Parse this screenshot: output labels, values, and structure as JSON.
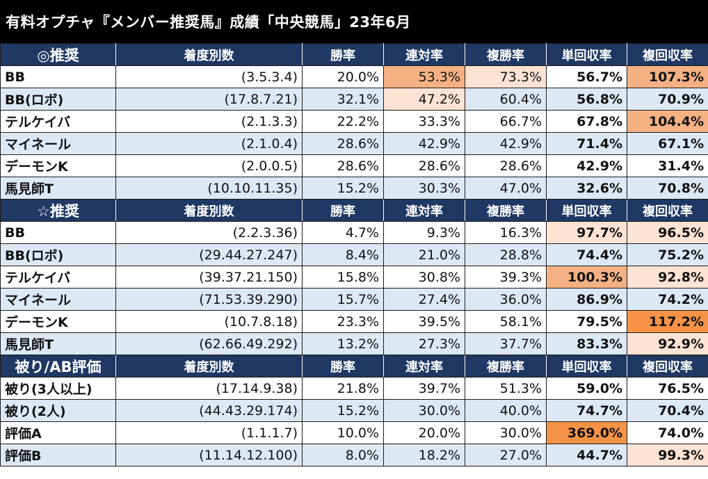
{
  "title": "有料オプチャ『メンバー推奨馬』成績「中央競馬」23年6月",
  "columns": [
    "着度別数",
    "勝率",
    "連対率",
    "複勝率",
    "単回収率",
    "複回収率"
  ],
  "colors": {
    "header_bg": "#1f3864",
    "row_alt_bg": "#dde8f5",
    "highlight_light": "#fde3d3",
    "highlight_mid": "#f5b183",
    "highlight_strong": "#f69346"
  },
  "sections": [
    {
      "label": "◎推奨",
      "rows": [
        {
          "name": "BB",
          "record": "(3.5.3.4)",
          "win": "20.0%",
          "quinella": "53.3%",
          "place": "73.3%",
          "win_return": "56.7%",
          "place_return": "107.3%"
        },
        {
          "name": "BB(ロボ)",
          "record": "(17.8.7.21)",
          "win": "32.1%",
          "quinella": "47.2%",
          "place": "60.4%",
          "win_return": "56.8%",
          "place_return": "70.9%"
        },
        {
          "name": "テルケイバ",
          "record": "(2.1.3.3)",
          "win": "22.2%",
          "quinella": "33.3%",
          "place": "66.7%",
          "win_return": "67.8%",
          "place_return": "104.4%"
        },
        {
          "name": "マイネール",
          "record": "(2.1.0.4)",
          "win": "28.6%",
          "quinella": "42.9%",
          "place": "42.9%",
          "win_return": "71.4%",
          "place_return": "67.1%"
        },
        {
          "name": "デーモンK",
          "record": "(2.0.0.5)",
          "win": "28.6%",
          "quinella": "28.6%",
          "place": "28.6%",
          "win_return": "42.9%",
          "place_return": "31.4%"
        },
        {
          "name": "馬見師T",
          "record": "(10.10.11.35)",
          "win": "15.2%",
          "quinella": "30.3%",
          "place": "47.0%",
          "win_return": "32.6%",
          "place_return": "70.8%"
        }
      ]
    },
    {
      "label": "☆推奨",
      "rows": [
        {
          "name": "BB",
          "record": "(2.2.3.36)",
          "win": "4.7%",
          "quinella": "9.3%",
          "place": "16.3%",
          "win_return": "97.7%",
          "place_return": "96.5%"
        },
        {
          "name": "BB(ロボ)",
          "record": "(29.44.27.247)",
          "win": "8.4%",
          "quinella": "21.0%",
          "place": "28.8%",
          "win_return": "74.4%",
          "place_return": "75.2%"
        },
        {
          "name": "テルケイバ",
          "record": "(39.37.21.150)",
          "win": "15.8%",
          "quinella": "30.8%",
          "place": "39.3%",
          "win_return": "100.3%",
          "place_return": "92.8%"
        },
        {
          "name": "マイネール",
          "record": "(71.53.39.290)",
          "win": "15.7%",
          "quinella": "27.4%",
          "place": "36.0%",
          "win_return": "86.9%",
          "place_return": "74.2%"
        },
        {
          "name": "デーモンK",
          "record": "(10.7.8.18)",
          "win": "23.3%",
          "quinella": "39.5%",
          "place": "58.1%",
          "win_return": "79.5%",
          "place_return": "117.2%"
        },
        {
          "name": "馬見師T",
          "record": "(62.66.49.292)",
          "win": "13.2%",
          "quinella": "27.3%",
          "place": "37.7%",
          "win_return": "83.3%",
          "place_return": "92.9%"
        }
      ]
    },
    {
      "label": "被り/AB評価",
      "rows": [
        {
          "name": "被り(3人以上)",
          "record": "(17.14.9.38)",
          "win": "21.8%",
          "quinella": "39.7%",
          "place": "51.3%",
          "win_return": "59.0%",
          "place_return": "76.5%"
        },
        {
          "name": "被り(2人)",
          "record": "(44.43.29.174)",
          "win": "15.2%",
          "quinella": "30.0%",
          "place": "40.0%",
          "win_return": "74.7%",
          "place_return": "70.4%"
        },
        {
          "name": "評価A",
          "record": "(1.1.1.7)",
          "win": "10.0%",
          "quinella": "20.0%",
          "place": "30.0%",
          "win_return": "369.0%",
          "place_return": "74.0%"
        },
        {
          "name": "評価B",
          "record": "(11.14.12.100)",
          "win": "8.0%",
          "quinella": "18.2%",
          "place": "27.0%",
          "win_return": "44.7%",
          "place_return": "99.3%"
        }
      ]
    }
  ]
}
